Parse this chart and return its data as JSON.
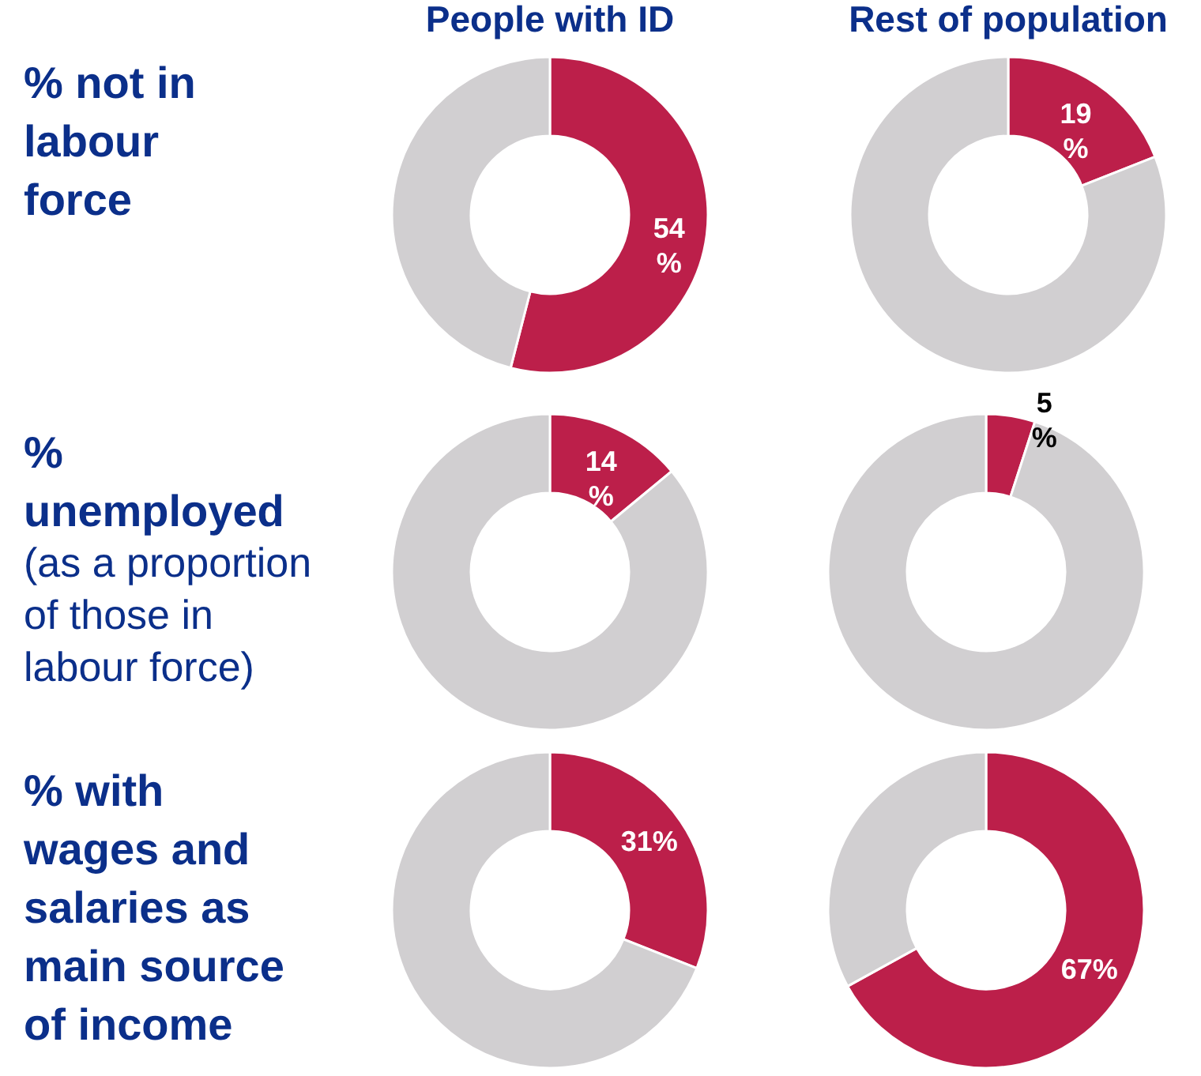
{
  "chart_data": [
    {
      "type": "other",
      "title": "% not in labour force"
    },
    {
      "type": "donut",
      "title": "People with ID",
      "categories": [
        null,
        null
      ],
      "values": [
        54,
        46
      ],
      "colors": [
        "#bc1f4a",
        "#d1cfd1"
      ],
      "value_labels": [
        "54 %",
        null
      ]
    },
    {
      "type": "donut",
      "title": "Rest of population",
      "categories": [
        null,
        null
      ],
      "values": [
        19,
        81
      ],
      "colors": [
        "#bc1f4a",
        "#d1cfd1"
      ],
      "value_labels": [
        "19 %",
        null
      ]
    },
    {
      "type": "other",
      "title": "% unemployed",
      "subtitle": "(as a proportion of those in labour force)"
    },
    {
      "type": "donut",
      "categories": [
        null,
        null
      ],
      "values": [
        14,
        86
      ],
      "colors": [
        "#bc1f4a",
        "#d1cfd1"
      ],
      "value_labels": [
        "14 %",
        null
      ]
    },
    {
      "type": "donut",
      "categories": [
        null,
        null
      ],
      "values": [
        5,
        95
      ],
      "colors": [
        "#bc1f4a",
        "#d1cfd1"
      ],
      "value_labels": [
        "5 %",
        null
      ]
    },
    {
      "type": "other",
      "title": "% with wages and salaries as main source of income"
    },
    {
      "type": "donut",
      "categories": [
        null,
        null
      ],
      "values": [
        31,
        69
      ],
      "colors": [
        "#bc1f4a",
        "#d1cfd1"
      ],
      "value_labels": [
        "31%",
        null
      ]
    },
    {
      "type": "donut",
      "categories": [
        null,
        null
      ],
      "values": [
        67,
        33
      ],
      "colors": [
        "#bc1f4a",
        "#d1cfd1"
      ],
      "value_labels": [
        "67%",
        null
      ]
    }
  ]
}
